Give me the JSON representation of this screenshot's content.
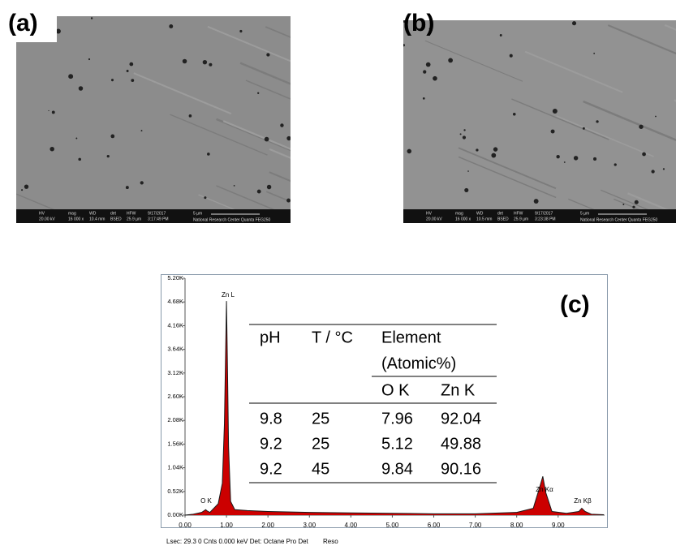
{
  "panel_a": {
    "label": "(a)",
    "info": [
      "HV",
      "20.00 kV",
      "mag",
      "16 000 x",
      "WD",
      "10.4 mm",
      "det",
      "BSED",
      "HFW",
      "25.9 µm",
      "9/17/2017",
      "3:17:49 PM",
      "5 µm",
      "National Research Center  Quanta FEG250"
    ]
  },
  "panel_b": {
    "label": "(b)",
    "info": [
      "HV",
      "20.00 kV",
      "mag",
      "16 000 x",
      "WD",
      "10.5 mm",
      "det",
      "BSED",
      "HFW",
      "25.9 µm",
      "9/17/2017",
      "3:23:38 PM",
      "5 µm",
      "National Research Center  Quanta FEG250"
    ]
  },
  "panel_c": {
    "label": "(c)",
    "footer": "Lsec: 29.3 0 Cnts  0.000 keV Det: Octane Pro Det",
    "footer_right": "Reso",
    "table": {
      "header": [
        "pH",
        "T / °C",
        "Element",
        "(Atomic%)"
      ],
      "subheader": [
        "O K",
        "Zn K"
      ],
      "rows": [
        [
          "9.8",
          "25",
          "7.96",
          "92.04"
        ],
        [
          "9.2",
          "25",
          "5.12",
          "49.88"
        ],
        [
          "9.2",
          "45",
          "9.84",
          "90.16"
        ]
      ]
    }
  },
  "chart_data": {
    "type": "area",
    "color": "#cc0000",
    "line_color": "#1a1a1a",
    "x": [
      0,
      0.2,
      0.4,
      0.5,
      0.52,
      0.6,
      0.8,
      0.9,
      0.95,
      1.0,
      1.02,
      1.05,
      1.1,
      1.2,
      1.5,
      2,
      3,
      4,
      5,
      6,
      7,
      8,
      8.4,
      8.55,
      8.63,
      8.7,
      8.85,
      9.2,
      9.5,
      9.57,
      9.65,
      9.8,
      10.1
    ],
    "values": [
      0,
      20,
      60,
      120,
      100,
      60,
      250,
      700,
      2000,
      4700,
      3500,
      1500,
      300,
      120,
      100,
      80,
      60,
      50,
      40,
      30,
      30,
      60,
      150,
      600,
      850,
      500,
      80,
      40,
      80,
      150,
      80,
      20,
      10
    ],
    "annotations": [
      "O K",
      "Zn L",
      "Zn Kα",
      "Zn Kβ"
    ],
    "xlim": [
      0,
      10.12
    ],
    "xticks": [
      {
        "value": 0,
        "label": "0.00"
      },
      {
        "value": 1,
        "label": "1.00"
      },
      {
        "value": 2,
        "label": "2.00"
      },
      {
        "value": 3,
        "label": "3.00"
      },
      {
        "value": 4,
        "label": "4.00"
      },
      {
        "value": 5,
        "label": "5.00"
      },
      {
        "value": 6,
        "label": "6.00"
      },
      {
        "value": 7,
        "label": "7.00"
      },
      {
        "value": 8,
        "label": "8.00"
      },
      {
        "value": 9,
        "label": "9.00"
      }
    ],
    "ylim": [
      0,
      5200
    ],
    "yticks": [
      {
        "value": 0,
        "label": "0.00K"
      },
      {
        "value": 520,
        "label": "0.52K"
      },
      {
        "value": 1040,
        "label": "1.04K"
      },
      {
        "value": 1560,
        "label": "1.56K"
      },
      {
        "value": 2080,
        "label": "2.08K"
      },
      {
        "value": 2600,
        "label": "2.60K"
      },
      {
        "value": 3120,
        "label": "3.12K"
      },
      {
        "value": 3640,
        "label": "3.64K"
      },
      {
        "value": 4160,
        "label": "4.16K"
      },
      {
        "value": 4680,
        "label": "4.68K"
      },
      {
        "value": 5200,
        "label": "5.20K"
      }
    ]
  }
}
